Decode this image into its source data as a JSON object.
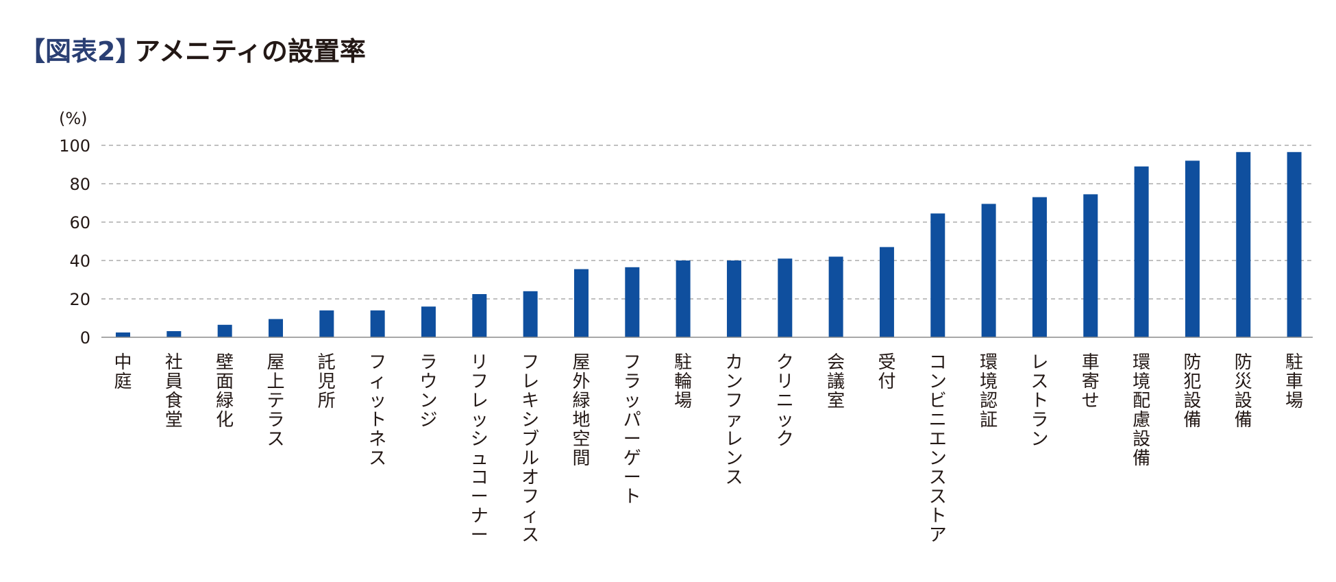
{
  "chart_data": {
    "type": "bar",
    "title": {
      "figure_tag": "【図表2】",
      "text": "アメニティの設置率"
    },
    "ylabel": "(%)",
    "xlabel": "",
    "ylim": [
      0,
      100
    ],
    "yticks": [
      0,
      20,
      40,
      60,
      80,
      100
    ],
    "grid": true,
    "colors": {
      "bar": "#0f4f9e",
      "tag": "#2a3f73",
      "text": "#231815",
      "grid": "#9a9a9a"
    },
    "categories": [
      "中庭",
      "社員食堂",
      "壁面緑化",
      "屋上テラス",
      "託児所",
      "フィットネス",
      "ラウンジ",
      "リフレッシュコーナー",
      "フレキシブルオフィス",
      "屋外緑地空間",
      "フラッパーゲート",
      "駐輪場",
      "カンファレンス",
      "クリニック",
      "会議室",
      "受付",
      "コンビニエンスストア",
      "環境認証",
      "レストラン",
      "車寄せ",
      "環境配慮設備",
      "防犯設備",
      "防災設備",
      "駐車場"
    ],
    "values": [
      2.5,
      3.2,
      6.5,
      9.5,
      14.0,
      14.0,
      16.0,
      22.5,
      24.0,
      35.5,
      36.5,
      40.0,
      40.0,
      41.0,
      42.0,
      47.0,
      64.5,
      69.5,
      73.0,
      74.5,
      89.0,
      92.0,
      96.5,
      96.5
    ]
  }
}
